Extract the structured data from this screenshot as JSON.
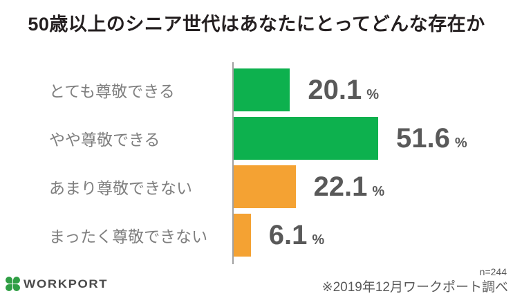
{
  "title": "50歳以上のシニア世代はあなたにとってどんな存在か",
  "chart_data": {
    "type": "bar",
    "orientation": "horizontal",
    "categories": [
      "とても尊敬できる",
      "やや尊敬できる",
      "あまり尊敬できない",
      "まったく尊敬できない"
    ],
    "values": [
      20.1,
      51.6,
      22.1,
      6.1
    ],
    "unit": "%",
    "bar_colors": [
      "#0db14e",
      "#0db14e",
      "#f4a233",
      "#f4a233"
    ],
    "xlim": [
      0,
      100
    ],
    "grid": false,
    "legend": false
  },
  "colors": {
    "green": "#0db14e",
    "orange": "#f4a233",
    "title_text": "#241f20",
    "category_text": "#7f7f7f",
    "value_text": "#595959",
    "axis_line": "#a0a0a0",
    "logo_green": "#2f9e44",
    "logo_text": "#4a4a4a"
  },
  "footer": {
    "logo_text": "WORKPORT",
    "logo_icon": "clover-icon",
    "sample_size": "n=244",
    "source_note": "※2019年12月ワークポート調べ"
  }
}
